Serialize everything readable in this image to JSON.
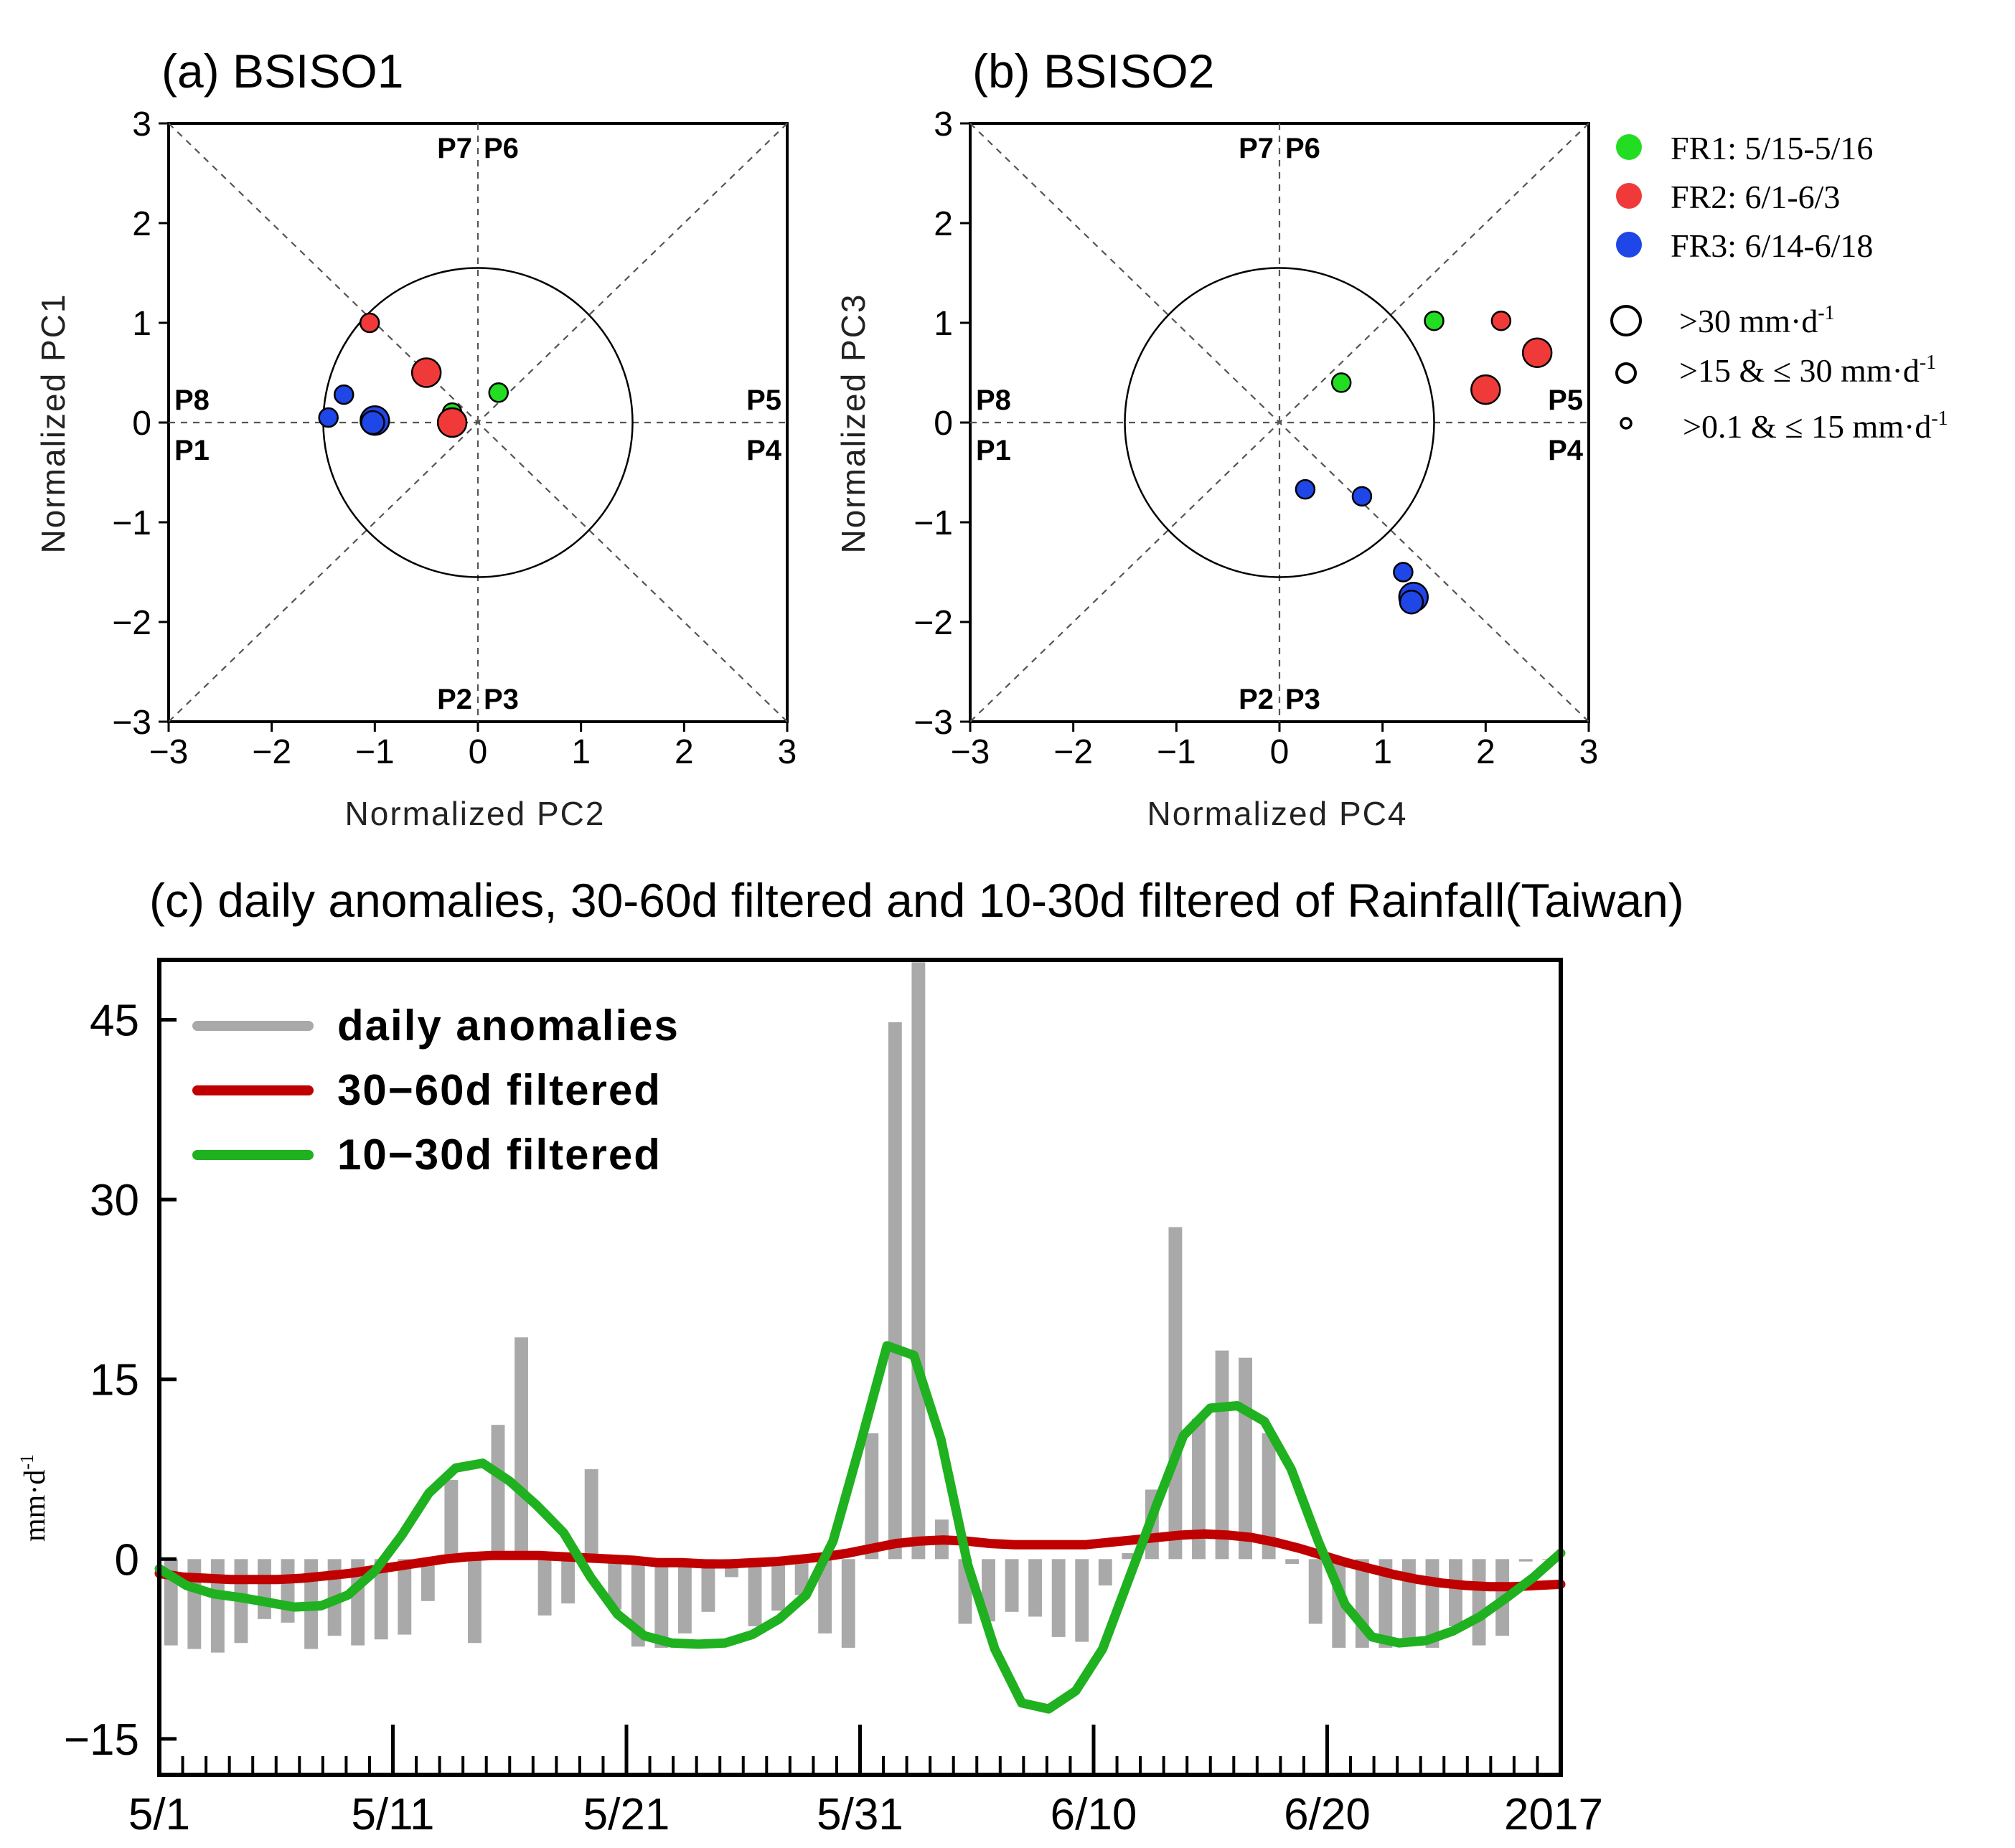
{
  "chart_data": [
    {
      "type": "scatter",
      "title": "(a) BSISO1",
      "xlabel": "Normalized PC2",
      "ylabel": "Normalized PC1",
      "xlim": [
        -3,
        3
      ],
      "ylim": [
        3,
        -3
      ],
      "x_ticks": [
        "−3",
        "−2",
        "−1",
        "0",
        "1",
        "2",
        "3"
      ],
      "y_ticks": [
        "−3",
        "−2",
        "−1",
        "0",
        "1",
        "2",
        "3"
      ],
      "phases": {
        "p1": "P1",
        "p2": "P2",
        "p3": "P3",
        "p4": "P4",
        "p5": "P5",
        "p6": "P6",
        "p7": "P7",
        "p8": "P8"
      },
      "unit_circle_radius": 1.5,
      "points": [
        {
          "group": "FR1",
          "x": -0.25,
          "y": 0.1,
          "size": "small"
        },
        {
          "group": "FR1",
          "x": 0.2,
          "y": 0.3,
          "size": "small"
        },
        {
          "group": "FR2",
          "x": -0.25,
          "y": 0.0,
          "size": "large"
        },
        {
          "group": "FR2",
          "x": -0.5,
          "y": 0.5,
          "size": "large"
        },
        {
          "group": "FR2",
          "x": -1.05,
          "y": 1.0,
          "size": "small"
        },
        {
          "group": "FR3",
          "x": -1.45,
          "y": 0.05,
          "size": "small"
        },
        {
          "group": "FR3",
          "x": -1.3,
          "y": 0.28,
          "size": "small"
        },
        {
          "group": "FR3",
          "x": -1.0,
          "y": 0.02,
          "size": "large"
        },
        {
          "group": "FR3",
          "x": -1.02,
          "y": 0.0,
          "size": "medium"
        }
      ]
    },
    {
      "type": "scatter",
      "title": "(b) BSISO2",
      "xlabel": "Normalized PC4",
      "ylabel": "Normalized PC3",
      "xlim": [
        -3,
        3
      ],
      "ylim": [
        3,
        -3
      ],
      "x_ticks": [
        "−3",
        "−2",
        "−1",
        "0",
        "1",
        "2",
        "3"
      ],
      "y_ticks": [
        "−3",
        "−2",
        "−1",
        "0",
        "1",
        "2",
        "3"
      ],
      "phases": {
        "p1": "P1",
        "p2": "P2",
        "p3": "P3",
        "p4": "P4",
        "p5": "P5",
        "p6": "P6",
        "p7": "P7",
        "p8": "P8"
      },
      "unit_circle_radius": 1.5,
      "points": [
        {
          "group": "FR1",
          "x": 0.6,
          "y": 0.4,
          "size": "small"
        },
        {
          "group": "FR1",
          "x": 1.5,
          "y": 1.02,
          "size": "small"
        },
        {
          "group": "FR2",
          "x": 2.0,
          "y": 0.33,
          "size": "large"
        },
        {
          "group": "FR2",
          "x": 2.5,
          "y": 0.7,
          "size": "large"
        },
        {
          "group": "FR2",
          "x": 2.15,
          "y": 1.02,
          "size": "small"
        },
        {
          "group": "FR3",
          "x": 0.25,
          "y": -0.67,
          "size": "small"
        },
        {
          "group": "FR3",
          "x": 0.8,
          "y": -0.74,
          "size": "small"
        },
        {
          "group": "FR3",
          "x": 1.2,
          "y": -1.5,
          "size": "small"
        },
        {
          "group": "FR3",
          "x": 1.3,
          "y": -1.75,
          "size": "large"
        },
        {
          "group": "FR3",
          "x": 1.28,
          "y": -1.8,
          "size": "medium"
        }
      ]
    },
    {
      "type": "bar+line",
      "title": "(c) daily anomalies, 30-60d filtered and 10-30d filtered of Rainfall(Taiwan)",
      "ylabel": "mm·d-1",
      "ylabel_main": "mm·d",
      "ylabel_sup": "-1",
      "ylim": [
        -18,
        50
      ],
      "y_ticks": [
        {
          "label": "−15",
          "value": -15
        },
        {
          "label": "0",
          "value": 0
        },
        {
          "label": "15",
          "value": 15
        },
        {
          "label": "30",
          "value": 30
        },
        {
          "label": "45",
          "value": 45
        }
      ],
      "x_ticks": [
        {
          "label": "5/1",
          "day": 0
        },
        {
          "label": "5/11",
          "day": 10
        },
        {
          "label": "5/21",
          "day": 20
        },
        {
          "label": "5/31",
          "day": 30
        },
        {
          "label": "6/10",
          "day": 40
        },
        {
          "label": "6/20",
          "day": 50
        },
        {
          "label": "2017",
          "day": 60
        }
      ],
      "x_range_days": [
        0,
        60
      ],
      "series": [
        {
          "name": "daily anomalies",
          "kind": "bar",
          "color": "#a9a9a9",
          "values": [
            -7.2,
            -7.5,
            -7.8,
            -7.0,
            -5,
            -5.3,
            -7.5,
            -6.4,
            -7.2,
            -6.7,
            -6.3,
            -3.5,
            6.6,
            -7,
            11.2,
            18.5,
            -4.7,
            -3.7,
            7.5,
            -4.2,
            -7.3,
            -7.4,
            -6.2,
            -4.4,
            -1.5,
            -5.6,
            -4.3,
            -3.0,
            -6.2,
            -7.4,
            10.5,
            44.8,
            49.8,
            3.3,
            -5.4,
            -5.2,
            -4.4,
            -4.8,
            -6.5,
            -6.9,
            -2.2,
            0.5,
            5.8,
            27.7,
            11.7,
            17.4,
            16.8,
            10.5,
            -0.4,
            -5.4,
            -7.4,
            -7.4,
            -7.4,
            -7.0,
            -7.4,
            -5.6,
            -7.2,
            -6.4,
            -0.2,
            0.0
          ]
        },
        {
          "name": "30−60d  filtered",
          "kind": "line",
          "color": "#c00000",
          "values": [
            -1.2,
            -1.5,
            -1.6,
            -1.7,
            -1.7,
            -1.7,
            -1.6,
            -1.4,
            -1.2,
            -0.9,
            -0.6,
            -0.3,
            0.0,
            0.2,
            0.3,
            0.3,
            0.3,
            0.2,
            0.1,
            0.0,
            -0.1,
            -0.3,
            -0.3,
            -0.4,
            -0.4,
            -0.3,
            -0.2,
            0.0,
            0.2,
            0.5,
            0.9,
            1.3,
            1.5,
            1.6,
            1.5,
            1.3,
            1.2,
            1.2,
            1.2,
            1.2,
            1.4,
            1.6,
            1.8,
            2.0,
            2.1,
            2.0,
            1.8,
            1.4,
            0.9,
            0.3,
            -0.3,
            -0.8,
            -1.3,
            -1.7,
            -2.0,
            -2.2,
            -2.3,
            -2.3,
            -2.2,
            -2.1
          ]
        },
        {
          "name": "10−30d  filtered",
          "kind": "line",
          "color": "#1fb11f",
          "values": [
            -0.8,
            -2.2,
            -2.9,
            -3.2,
            -3.6,
            -4.0,
            -3.9,
            -3.0,
            -1.0,
            2.0,
            5.5,
            7.6,
            8.0,
            6.5,
            4.5,
            2.2,
            -1.5,
            -4.6,
            -6.4,
            -7.0,
            -7.1,
            -7.0,
            -6.3,
            -5.0,
            -3.0,
            1.5,
            9.5,
            17.8,
            17.0,
            10.0,
            -0.5,
            -7.5,
            -12.0,
            -12.5,
            -11.0,
            -7.5,
            -1.5,
            4.5,
            10.3,
            12.6,
            12.8,
            11.5,
            7.5,
            1.5,
            -3.8,
            -6.5,
            -7.0,
            -6.8,
            -6.0,
            -4.8,
            -3.2,
            -1.5,
            0.5
          ]
        }
      ],
      "line_x_days": [
        [
          0,
          59.5
        ],
        [
          0,
          59.5
        ],
        [
          0,
          59.5
        ]
      ]
    }
  ],
  "legend_top": {
    "groups": [
      {
        "key": "FR1",
        "label": "FR1: 5/15-5/16",
        "color": "#22dd22"
      },
      {
        "key": "FR2",
        "label": "FR2: 6/1-6/3",
        "color": "#f03a3a"
      },
      {
        "key": "FR3",
        "label": "FR3: 6/14-6/18",
        "color": "#1f46e6"
      }
    ],
    "sizes": [
      {
        "key": "large",
        "label_main": ">30 mm·d",
        "label_sup": "-1"
      },
      {
        "key": "medium",
        "label_main": ">15 & ≤ 30 mm·d",
        "label_sup": "-1"
      },
      {
        "key": "small",
        "label_main": ">0.1 & ≤ 15 mm·d",
        "label_sup": "-1"
      }
    ]
  },
  "colors": {
    "FR1": "#22dd22",
    "FR2": "#f03a3a",
    "FR3": "#1f46e6",
    "bar": "#a9a9a9",
    "line_30_60": "#c00000",
    "line_10_30": "#1fb11f"
  }
}
